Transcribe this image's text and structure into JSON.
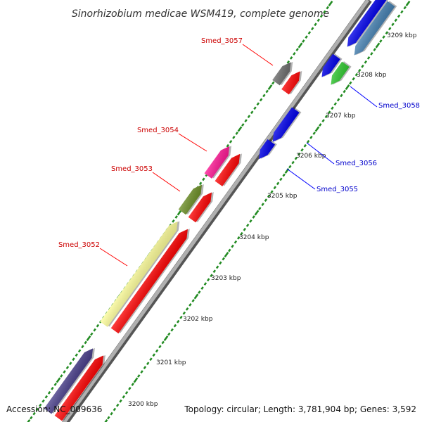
{
  "title": "Sinorhizobium medicae WSM419, complete genome",
  "accession": "Accession: NC_009636",
  "summary": "Topology: circular; Length: 3,781,904 bp; Genes: 3,592",
  "colors": {
    "forward_cds": "#ff0000",
    "reverse_cds": "#0000ee",
    "backbone": "#808080",
    "tick": "#228b22",
    "label_forward": "#cc0000",
    "label_reverse": "#0000cc"
  },
  "ticks": [
    "3200 kbp",
    "3201 kbp",
    "3202 kbp",
    "3203 kbp",
    "3204 kbp",
    "3205 kbp",
    "3206 kbp",
    "3207 kbp",
    "3208 kbp",
    "3209 kbp"
  ],
  "labels": {
    "forward": [
      "Smed_3057",
      "Smed_3054",
      "Smed_3053",
      "Smed_3052"
    ],
    "reverse": [
      "Smed_3058",
      "Smed_3056",
      "Smed_3055"
    ]
  },
  "cog_colors": [
    "#ffff99",
    "#6b8e23",
    "#ff1493",
    "#696969",
    "#483d8b",
    "#4682b4",
    "#32cd32"
  ]
}
